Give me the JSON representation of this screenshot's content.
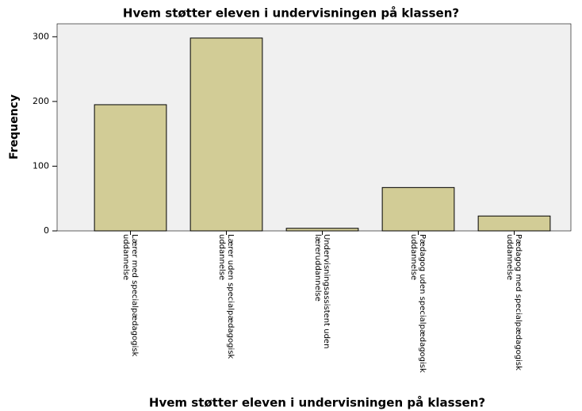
{
  "chart_data": {
    "type": "bar",
    "title": "Hvem støtter eleven i undervisningen på klassen?",
    "x_label": "Hvem støtter eleven i undervisningen på klassen?",
    "y_label": "Frequency",
    "categories": [
      "Lærer med specialpædagogisk uddannelse",
      "Lærer uden specialpædagogisk uddannelse",
      "Undervisningsassistent uden læreruddannelse",
      "Pædagog uden specialpædagogisk uddannelse",
      "Pædagog med specialpædagogisk uddannelse"
    ],
    "values": [
      195,
      298,
      4,
      67,
      23
    ],
    "color": "#d2cc96",
    "ylim": [
      0,
      320
    ],
    "yticks": [
      0,
      100,
      200,
      300
    ],
    "grid": false
  }
}
